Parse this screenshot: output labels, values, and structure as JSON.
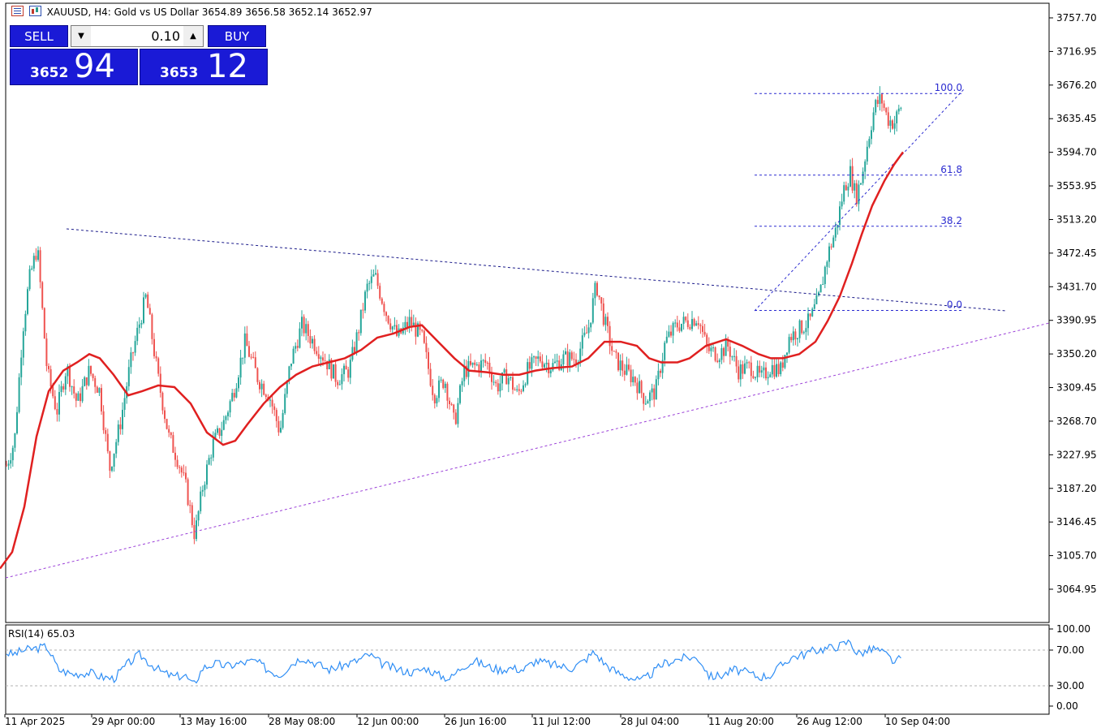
{
  "header": {
    "symbol_line": "XAUUSD, H4:  Gold vs US Dollar  3654.89 3656.58 3652.14 3652.97"
  },
  "trade_panel": {
    "sell_label": "SELL",
    "buy_label": "BUY",
    "lot_value": "0.10",
    "sell_price_small": "3652",
    "sell_price_big": "94",
    "buy_price_small": "3653",
    "buy_price_big": "12"
  },
  "colors": {
    "bull": "#26a69a",
    "bear": "#ef5350",
    "ma": "#e02020",
    "fib": "#2a2ad0",
    "support": "#9b40d8",
    "rsi": "#2f8ef5",
    "button": "#1a1ad6"
  },
  "chart_data": [
    {
      "type": "candlestick",
      "title": "",
      "price_axis_ticks": [
        "3757.70",
        "3716.95",
        "3676.20",
        "3635.45",
        "3594.70",
        "3553.95",
        "3513.20",
        "3472.45",
        "3431.70",
        "3390.95",
        "3350.20",
        "3309.45",
        "3268.70",
        "3227.95",
        "3187.20",
        "3146.45",
        "3105.70",
        "3064.95"
      ],
      "time_axis_ticks": [
        "11 Apr 2025",
        "29 Apr 00:00",
        "13 May 16:00",
        "28 May 08:00",
        "12 Jun 00:00",
        "26 Jun 16:00",
        "11 Jul 12:00",
        "28 Jul 04:00",
        "11 Aug 20:00",
        "26 Aug 12:00",
        "10 Sep 04:00"
      ],
      "ylim": [
        3030,
        3775
      ],
      "price_path": [
        [
          0,
          3240
        ],
        [
          8,
          3215
        ],
        [
          18,
          3245
        ],
        [
          28,
          3380
        ],
        [
          36,
          3440
        ],
        [
          46,
          3480
        ],
        [
          58,
          3330
        ],
        [
          70,
          3280
        ],
        [
          82,
          3335
        ],
        [
          95,
          3290
        ],
        [
          110,
          3330
        ],
        [
          123,
          3305
        ],
        [
          135,
          3210
        ],
        [
          148,
          3265
        ],
        [
          160,
          3335
        ],
        [
          170,
          3380
        ],
        [
          180,
          3420
        ],
        [
          195,
          3320
        ],
        [
          208,
          3250
        ],
        [
          220,
          3220
        ],
        [
          230,
          3185
        ],
        [
          240,
          3130
        ],
        [
          250,
          3190
        ],
        [
          262,
          3240
        ],
        [
          275,
          3265
        ],
        [
          288,
          3305
        ],
        [
          302,
          3365
        ],
        [
          318,
          3320
        ],
        [
          332,
          3300
        ],
        [
          345,
          3255
        ],
        [
          358,
          3340
        ],
        [
          372,
          3385
        ],
        [
          386,
          3365
        ],
        [
          400,
          3345
        ],
        [
          415,
          3320
        ],
        [
          430,
          3330
        ],
        [
          442,
          3380
        ],
        [
          452,
          3430
        ],
        [
          462,
          3445
        ],
        [
          476,
          3400
        ],
        [
          490,
          3370
        ],
        [
          505,
          3390
        ],
        [
          520,
          3370
        ],
        [
          535,
          3300
        ],
        [
          548,
          3320
        ],
        [
          560,
          3265
        ],
        [
          572,
          3330
        ],
        [
          585,
          3335
        ],
        [
          600,
          3340
        ],
        [
          612,
          3310
        ],
        [
          625,
          3325
        ],
        [
          638,
          3300
        ],
        [
          650,
          3330
        ],
        [
          665,
          3345
        ],
        [
          680,
          3335
        ],
        [
          695,
          3345
        ],
        [
          710,
          3345
        ],
        [
          725,
          3380
        ],
        [
          735,
          3435
        ],
        [
          745,
          3390
        ],
        [
          757,
          3345
        ],
        [
          770,
          3330
        ],
        [
          782,
          3320
        ],
        [
          795,
          3295
        ],
        [
          808,
          3305
        ],
        [
          820,
          3365
        ],
        [
          834,
          3385
        ],
        [
          848,
          3390
        ],
        [
          860,
          3395
        ],
        [
          872,
          3355
        ],
        [
          885,
          3350
        ],
        [
          897,
          3360
        ],
        [
          910,
          3330
        ],
        [
          925,
          3335
        ],
        [
          938,
          3320
        ],
        [
          950,
          3335
        ],
        [
          962,
          3330
        ],
        [
          972,
          3370
        ],
        [
          985,
          3380
        ],
        [
          998,
          3390
        ],
        [
          1010,
          3420
        ],
        [
          1020,
          3470
        ],
        [
          1030,
          3500
        ],
        [
          1040,
          3550
        ],
        [
          1048,
          3570
        ],
        [
          1055,
          3540
        ],
        [
          1062,
          3565
        ],
        [
          1070,
          3610
        ],
        [
          1078,
          3650
        ],
        [
          1086,
          3660
        ],
        [
          1094,
          3635
        ],
        [
          1102,
          3630
        ],
        [
          1110,
          3650
        ],
        [
          1113,
          3653
        ]
      ],
      "moving_average": [
        [
          0,
          3090
        ],
        [
          15,
          3110
        ],
        [
          30,
          3165
        ],
        [
          45,
          3250
        ],
        [
          60,
          3305
        ],
        [
          78,
          3330
        ],
        [
          95,
          3340
        ],
        [
          110,
          3350
        ],
        [
          123,
          3345
        ],
        [
          140,
          3325
        ],
        [
          158,
          3300
        ],
        [
          175,
          3305
        ],
        [
          195,
          3312
        ],
        [
          215,
          3310
        ],
        [
          235,
          3290
        ],
        [
          255,
          3255
        ],
        [
          275,
          3240
        ],
        [
          290,
          3245
        ],
        [
          305,
          3265
        ],
        [
          325,
          3290
        ],
        [
          345,
          3310
        ],
        [
          365,
          3325
        ],
        [
          385,
          3335
        ],
        [
          405,
          3340
        ],
        [
          425,
          3345
        ],
        [
          445,
          3355
        ],
        [
          465,
          3370
        ],
        [
          485,
          3375
        ],
        [
          505,
          3383
        ],
        [
          520,
          3385
        ],
        [
          540,
          3365
        ],
        [
          560,
          3345
        ],
        [
          578,
          3330
        ],
        [
          600,
          3328
        ],
        [
          620,
          3325
        ],
        [
          640,
          3325
        ],
        [
          660,
          3330
        ],
        [
          680,
          3333
        ],
        [
          705,
          3335
        ],
        [
          725,
          3345
        ],
        [
          745,
          3365
        ],
        [
          765,
          3365
        ],
        [
          785,
          3360
        ],
        [
          800,
          3345
        ],
        [
          815,
          3340
        ],
        [
          835,
          3340
        ],
        [
          850,
          3345
        ],
        [
          870,
          3360
        ],
        [
          895,
          3368
        ],
        [
          915,
          3360
        ],
        [
          935,
          3350
        ],
        [
          950,
          3345
        ],
        [
          965,
          3345
        ],
        [
          985,
          3350
        ],
        [
          1005,
          3365
        ],
        [
          1020,
          3390
        ],
        [
          1035,
          3420
        ],
        [
          1050,
          3460
        ],
        [
          1062,
          3495
        ],
        [
          1075,
          3530
        ],
        [
          1090,
          3560
        ],
        [
          1102,
          3580
        ],
        [
          1113,
          3595
        ]
      ],
      "fibonacci": [
        {
          "label": "100.0",
          "price": 3666
        },
        {
          "label": "61.8",
          "price": 3567
        },
        {
          "label": "38.2",
          "price": 3505
        },
        {
          "label": "0.0",
          "price": 3403
        }
      ],
      "series": [
        {
          "name": "RSI(14) 65.03",
          "type": "line"
        }
      ]
    },
    {
      "type": "line",
      "title": "RSI(14) 65.03",
      "ylim": [
        0,
        100
      ],
      "y_ticks": [
        "100.00",
        "70.00",
        "30.00",
        "0.00"
      ],
      "levels": [
        70,
        30
      ],
      "rsi_path": [
        [
          0,
          70
        ],
        [
          15,
          65
        ],
        [
          30,
          70
        ],
        [
          45,
          72
        ],
        [
          58,
          74
        ],
        [
          72,
          48
        ],
        [
          90,
          43
        ],
        [
          110,
          45
        ],
        [
          125,
          40
        ],
        [
          140,
          38
        ],
        [
          158,
          55
        ],
        [
          172,
          65
        ],
        [
          185,
          55
        ],
        [
          200,
          45
        ],
        [
          215,
          40
        ],
        [
          228,
          42
        ],
        [
          238,
          30
        ],
        [
          250,
          50
        ],
        [
          265,
          55
        ],
        [
          280,
          52
        ],
        [
          295,
          55
        ],
        [
          315,
          58
        ],
        [
          330,
          48
        ],
        [
          345,
          42
        ],
        [
          360,
          55
        ],
        [
          372,
          62
        ],
        [
          390,
          55
        ],
        [
          405,
          48
        ],
        [
          420,
          52
        ],
        [
          440,
          58
        ],
        [
          455,
          65
        ],
        [
          470,
          55
        ],
        [
          490,
          48
        ],
        [
          510,
          45
        ],
        [
          525,
          50
        ],
        [
          540,
          42
        ],
        [
          555,
          38
        ],
        [
          570,
          52
        ],
        [
          585,
          58
        ],
        [
          600,
          52
        ],
        [
          615,
          48
        ],
        [
          630,
          50
        ],
        [
          645,
          48
        ],
        [
          660,
          58
        ],
        [
          675,
          55
        ],
        [
          690,
          52
        ],
        [
          705,
          50
        ],
        [
          720,
          58
        ],
        [
          732,
          68
        ],
        [
          745,
          55
        ],
        [
          760,
          45
        ],
        [
          775,
          40
        ],
        [
          790,
          35
        ],
        [
          805,
          45
        ],
        [
          818,
          55
        ],
        [
          835,
          60
        ],
        [
          850,
          62
        ],
        [
          862,
          60
        ],
        [
          875,
          40
        ],
        [
          890,
          42
        ],
        [
          905,
          48
        ],
        [
          920,
          45
        ],
        [
          935,
          40
        ],
        [
          950,
          42
        ],
        [
          962,
          52
        ],
        [
          975,
          62
        ],
        [
          990,
          65
        ],
        [
          1005,
          70
        ],
        [
          1020,
          72
        ],
        [
          1035,
          75
        ],
        [
          1048,
          80
        ],
        [
          1056,
          66
        ],
        [
          1066,
          68
        ],
        [
          1078,
          72
        ],
        [
          1092,
          65
        ],
        [
          1104,
          55
        ],
        [
          1113,
          65
        ]
      ]
    }
  ]
}
